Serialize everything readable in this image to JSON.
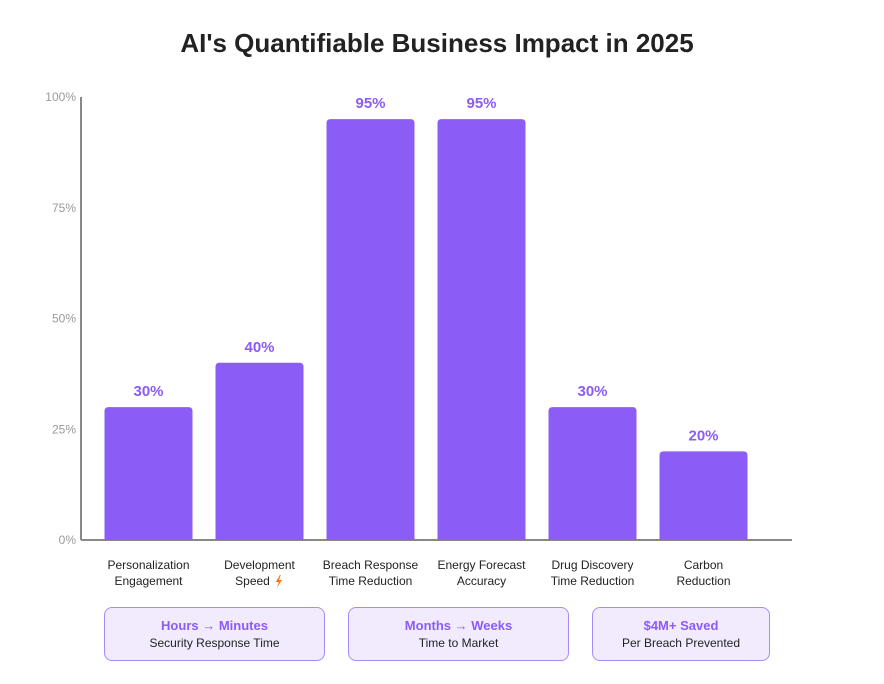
{
  "chart_data": {
    "type": "bar",
    "title": "AI's Quantifiable Business Impact in 2025",
    "categories": [
      [
        "Personalization",
        "Engagement"
      ],
      [
        "Development",
        "Speed"
      ],
      [
        "Breach Response",
        "Time Reduction"
      ],
      [
        "Energy Forecast",
        "Accuracy"
      ],
      [
        "Drug Discovery",
        "Time Reduction"
      ],
      [
        "Carbon",
        "Reduction"
      ]
    ],
    "values": [
      30,
      40,
      95,
      95,
      30,
      20
    ],
    "value_labels": [
      "30%",
      "40%",
      "95%",
      "95%",
      "30%",
      "20%"
    ],
    "yticks": [
      0,
      25,
      50,
      75,
      100
    ],
    "ytick_labels": [
      "0%",
      "25%",
      "50%",
      "75%",
      "100%"
    ],
    "ylim": [
      0,
      100
    ],
    "bar_color": "#8b5cf6",
    "grid": false,
    "category_icons": {
      "1": "lightning-icon"
    }
  },
  "cards": [
    {
      "headline": "Hours → Minutes",
      "caption": "Security Response Time"
    },
    {
      "headline": "Months → Weeks",
      "caption": "Time to Market"
    },
    {
      "headline": "$4M+ Saved",
      "caption": "Per Breach Prevented"
    }
  ]
}
